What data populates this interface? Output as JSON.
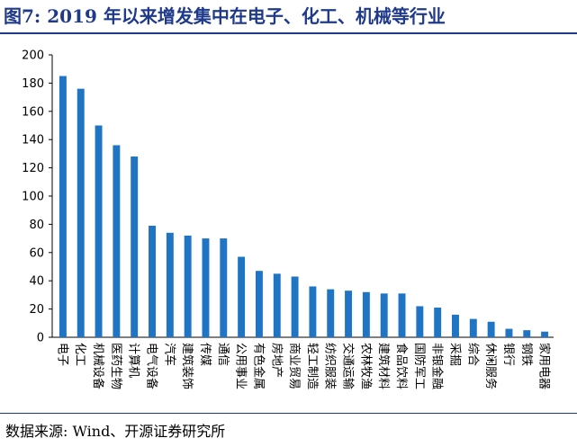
{
  "header": {
    "title": "图7:  2019 年以来增发集中在电子、化工、机械等行业"
  },
  "footer": {
    "source": "数据来源:  Wind、开源证券研究所"
  },
  "colors": {
    "bar": "#1f74c4",
    "accent": "#1f3a8a"
  },
  "chart_data": {
    "type": "bar",
    "categories": [
      "电子",
      "化工",
      "机械设备",
      "医药生物",
      "计算机",
      "电气设备",
      "汽车",
      "建筑装饰",
      "传媒",
      "通信",
      "公用事业",
      "有色金属",
      "房地产",
      "商业贸易",
      "轻工制造",
      "纺织服装",
      "交通运输",
      "农林牧渔",
      "建筑材料",
      "食品饮料",
      "国防军工",
      "非银金融",
      "采掘",
      "综合",
      "休闲服务",
      "银行",
      "钢铁",
      "家用电器"
    ],
    "values": [
      185,
      176,
      150,
      136,
      128,
      79,
      74,
      72,
      70,
      70,
      57,
      47,
      45,
      43,
      36,
      34,
      33,
      32,
      31,
      31,
      22,
      21,
      16,
      13,
      11,
      6,
      5,
      4
    ],
    "ylim": [
      0,
      200
    ],
    "yticks": [
      "0",
      "20",
      "40",
      "60",
      "80",
      "100",
      "120",
      "140",
      "160",
      "180",
      "200"
    ],
    "grid": false,
    "legend": "none"
  }
}
